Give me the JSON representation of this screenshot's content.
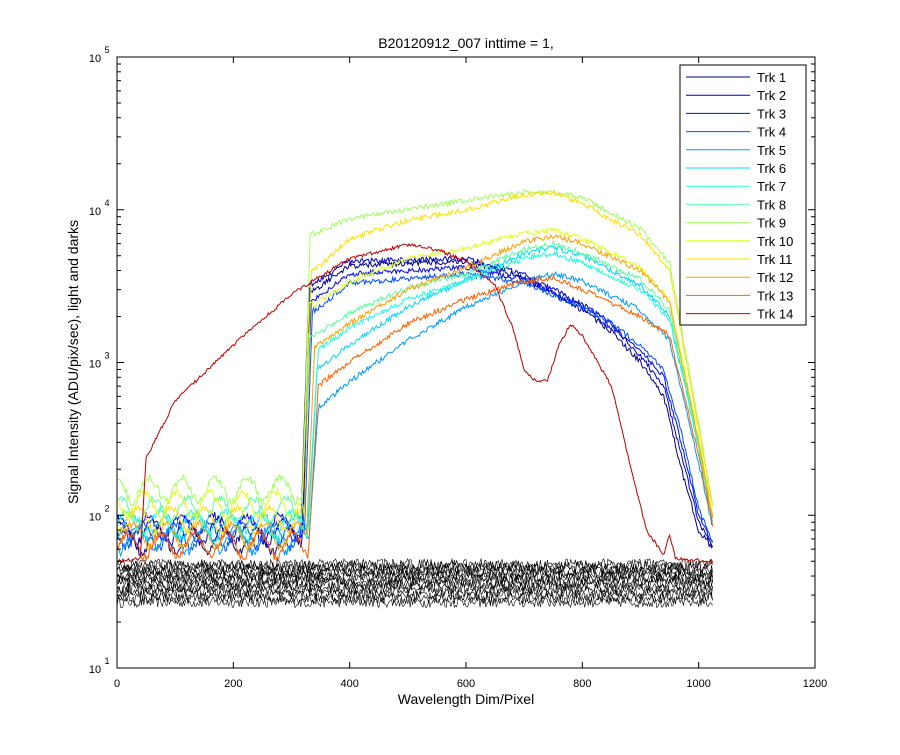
{
  "chart_data": {
    "type": "line",
    "title": "B20120912_007 inttime = 1,",
    "xlabel": "Wavelength Dim/Pixel",
    "ylabel": "Signal Intensity (ADU/pix/sec), light and darks",
    "xlim": [
      0,
      1200
    ],
    "ylim": [
      10,
      100000
    ],
    "yscale": "log",
    "xticks": [
      "0",
      "200",
      "400",
      "600",
      "800",
      "1000",
      "1200"
    ],
    "yticks": [
      {
        "base": "10",
        "exp": "1"
      },
      {
        "base": "10",
        "exp": "2"
      },
      {
        "base": "10",
        "exp": "3"
      },
      {
        "base": "10",
        "exp": "4"
      },
      {
        "base": "10",
        "exp": "5"
      }
    ],
    "grid": false,
    "legend_position": "top-right",
    "series": [
      {
        "name": "Trk 1",
        "color": "#00008F",
        "dark": 48,
        "pre": 70,
        "edge": 318,
        "rise": 14,
        "plateau": 4300,
        "curve": [
          [
            340,
            3000
          ],
          [
            400,
            4300
          ],
          [
            600,
            4600
          ],
          [
            700,
            3600
          ],
          [
            800,
            2200
          ],
          [
            850,
            1600
          ],
          [
            900,
            1000
          ],
          [
            940,
            600
          ],
          [
            970,
            200
          ],
          [
            1000,
            80
          ],
          [
            1025,
            60
          ]
        ]
      },
      {
        "name": "Trk 2",
        "color": "#0000C8",
        "dark": 50,
        "pre": 80,
        "edge": 316,
        "rise": 14,
        "plateau": 4600,
        "curve": [
          [
            340,
            3300
          ],
          [
            400,
            4600
          ],
          [
            600,
            4800
          ],
          [
            700,
            3800
          ],
          [
            800,
            2400
          ],
          [
            850,
            1800
          ],
          [
            900,
            1100
          ],
          [
            940,
            700
          ],
          [
            970,
            250
          ],
          [
            1000,
            90
          ],
          [
            1025,
            62
          ]
        ]
      },
      {
        "name": "Trk 3",
        "color": "#0008FF",
        "dark": 49,
        "pre": 85,
        "edge": 320,
        "rise": 14,
        "plateau": 3800,
        "curve": [
          [
            340,
            2600
          ],
          [
            400,
            3800
          ],
          [
            600,
            4200
          ],
          [
            700,
            3500
          ],
          [
            800,
            2300
          ],
          [
            850,
            1700
          ],
          [
            900,
            1200
          ],
          [
            940,
            800
          ],
          [
            970,
            300
          ],
          [
            1000,
            100
          ],
          [
            1025,
            64
          ]
        ]
      },
      {
        "name": "Trk 4",
        "color": "#0050FF",
        "dark": 51,
        "pre": 75,
        "edge": 322,
        "rise": 14,
        "plateau": 3300,
        "curve": [
          [
            340,
            2200
          ],
          [
            400,
            3300
          ],
          [
            600,
            3800
          ],
          [
            700,
            3300
          ],
          [
            800,
            2300
          ],
          [
            850,
            1800
          ],
          [
            900,
            1300
          ],
          [
            940,
            900
          ],
          [
            970,
            350
          ],
          [
            1000,
            110
          ],
          [
            1025,
            65
          ]
        ]
      },
      {
        "name": "Trk 5",
        "color": "#0098FF",
        "dark": 52,
        "pre": 70,
        "edge": 330,
        "rise": 16,
        "plateau": 750,
        "curve": [
          [
            345,
            500
          ],
          [
            400,
            750
          ],
          [
            500,
            1400
          ],
          [
            600,
            2300
          ],
          [
            700,
            3400
          ],
          [
            750,
            3800
          ],
          [
            800,
            3400
          ],
          [
            900,
            2200
          ],
          [
            950,
            1400
          ],
          [
            1000,
            220
          ],
          [
            1025,
            80
          ]
        ]
      },
      {
        "name": "Trk 6",
        "color": "#00D8FF",
        "dark": 53,
        "pre": 85,
        "edge": 328,
        "rise": 16,
        "plateau": 1300,
        "curve": [
          [
            345,
            900
          ],
          [
            400,
            1300
          ],
          [
            500,
            2300
          ],
          [
            600,
            3500
          ],
          [
            700,
            5200
          ],
          [
            750,
            5700
          ],
          [
            800,
            5000
          ],
          [
            900,
            3200
          ],
          [
            950,
            2000
          ],
          [
            1000,
            300
          ],
          [
            1025,
            90
          ]
        ]
      },
      {
        "name": "Trk 7",
        "color": "#20FFDF",
        "dark": 54,
        "pre": 90,
        "edge": 330,
        "rise": 16,
        "plateau": 1700,
        "curve": [
          [
            345,
            1200
          ],
          [
            400,
            1700
          ],
          [
            500,
            2600
          ],
          [
            600,
            3400
          ],
          [
            700,
            4800
          ],
          [
            750,
            5200
          ],
          [
            800,
            4500
          ],
          [
            900,
            3000
          ],
          [
            950,
            1900
          ],
          [
            1000,
            280
          ],
          [
            1025,
            85
          ]
        ]
      },
      {
        "name": "Trk 8",
        "color": "#60FF9F",
        "dark": 55,
        "pre": 110,
        "edge": 318,
        "rise": 12,
        "plateau": 2100,
        "curve": [
          [
            340,
            1500
          ],
          [
            400,
            2100
          ],
          [
            500,
            3100
          ],
          [
            600,
            3800
          ],
          [
            700,
            5500
          ],
          [
            750,
            6000
          ],
          [
            800,
            5200
          ],
          [
            900,
            3500
          ],
          [
            950,
            2200
          ],
          [
            1000,
            300
          ],
          [
            1025,
            88
          ]
        ]
      },
      {
        "name": "Trk 9",
        "color": "#A0FF5F",
        "dark": 56,
        "pre": 150,
        "edge": 320,
        "rise": 12,
        "plateau": 7500,
        "curve": [
          [
            340,
            7000
          ],
          [
            400,
            8800
          ],
          [
            500,
            10000
          ],
          [
            600,
            11500
          ],
          [
            700,
            13000
          ],
          [
            750,
            13000
          ],
          [
            800,
            12000
          ],
          [
            900,
            7500
          ],
          [
            950,
            4500
          ],
          [
            1000,
            400
          ],
          [
            1025,
            110
          ]
        ]
      },
      {
        "name": "Trk 10",
        "color": "#E0FF1F",
        "dark": 57,
        "pre": 120,
        "edge": 318,
        "rise": 12,
        "plateau": 2800,
        "curve": [
          [
            340,
            2400
          ],
          [
            400,
            3400
          ],
          [
            500,
            4800
          ],
          [
            600,
            5600
          ],
          [
            700,
            7000
          ],
          [
            750,
            7300
          ],
          [
            800,
            6500
          ],
          [
            900,
            4200
          ],
          [
            950,
            2600
          ],
          [
            1000,
            330
          ],
          [
            1025,
            95
          ]
        ]
      },
      {
        "name": "Trk 11",
        "color": "#FFDF00",
        "dark": 56,
        "pre": 95,
        "edge": 322,
        "rise": 12,
        "plateau": 4200,
        "curve": [
          [
            340,
            4000
          ],
          [
            400,
            6500
          ],
          [
            500,
            8500
          ],
          [
            600,
            10000
          ],
          [
            700,
            12500
          ],
          [
            750,
            13000
          ],
          [
            800,
            11000
          ],
          [
            900,
            6800
          ],
          [
            950,
            4000
          ],
          [
            1000,
            380
          ],
          [
            1025,
            105
          ]
        ]
      },
      {
        "name": "Trk 12",
        "color": "#FF9F00",
        "dark": 55,
        "pre": 75,
        "edge": 326,
        "rise": 14,
        "plateau": 1800,
        "curve": [
          [
            345,
            1300
          ],
          [
            400,
            1800
          ],
          [
            500,
            3000
          ],
          [
            600,
            4200
          ],
          [
            700,
            6200
          ],
          [
            750,
            6700
          ],
          [
            800,
            6000
          ],
          [
            900,
            4000
          ],
          [
            950,
            2500
          ],
          [
            1000,
            300
          ],
          [
            1025,
            90
          ]
        ]
      },
      {
        "name": "Trk 13",
        "color": "#FF5F00",
        "dark": 54,
        "pre": 65,
        "edge": 330,
        "rise": 16,
        "plateau": 1000,
        "curve": [
          [
            345,
            700
          ],
          [
            400,
            1000
          ],
          [
            500,
            1800
          ],
          [
            600,
            2600
          ],
          [
            700,
            3400
          ],
          [
            750,
            3600
          ],
          [
            800,
            3000
          ],
          [
            900,
            2000
          ],
          [
            950,
            1500
          ],
          [
            1000,
            250
          ],
          [
            1025,
            82
          ]
        ]
      },
      {
        "name": "Trk 14",
        "color": "#C00000",
        "dark": 53,
        "pre": 55,
        "edge": 0,
        "rise": 0,
        "plateau": 0,
        "curve": [
          [
            0,
            50
          ],
          [
            40,
            52
          ],
          [
            50,
            240
          ],
          [
            60,
            280
          ],
          [
            100,
            560
          ],
          [
            200,
            1300
          ],
          [
            300,
            2800
          ],
          [
            400,
            4800
          ],
          [
            500,
            5900
          ],
          [
            550,
            5500
          ],
          [
            600,
            4600
          ],
          [
            650,
            3200
          ],
          [
            680,
            1700
          ],
          [
            700,
            900
          ],
          [
            720,
            750
          ],
          [
            740,
            760
          ],
          [
            760,
            1300
          ],
          [
            780,
            1800
          ],
          [
            800,
            1500
          ],
          [
            850,
            700
          ],
          [
            880,
            230
          ],
          [
            910,
            80
          ],
          [
            940,
            55
          ],
          [
            950,
            75
          ],
          [
            960,
            52
          ],
          [
            1025,
            50
          ]
        ]
      }
    ],
    "darks": {
      "count": 14,
      "min": 27,
      "max": 48,
      "color": "#000000"
    }
  }
}
